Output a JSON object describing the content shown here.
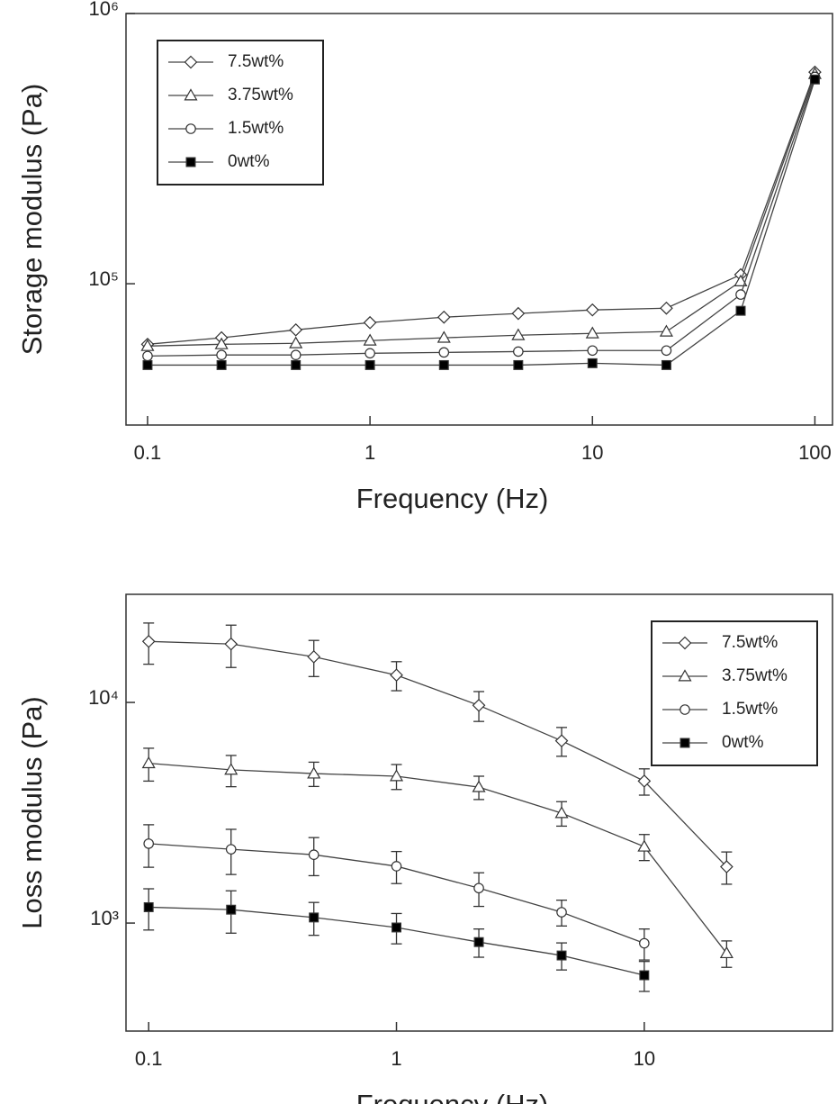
{
  "chart_data": [
    {
      "type": "line",
      "xlabel": "Frequency (Hz)",
      "ylabel": "Storage modulus (Pa)",
      "xscale": "log",
      "yscale": "log",
      "x": [
        0.1,
        0.215,
        0.464,
        1,
        2.15,
        4.64,
        10,
        21.5,
        46.4,
        100
      ],
      "xlim": [
        0.08,
        120
      ],
      "xticks": [
        0.1,
        1,
        10,
        100
      ],
      "ylim": [
        30000,
        1000000
      ],
      "yticks": [
        {
          "value": 100000,
          "label": "10⁵"
        },
        {
          "value": 1000000,
          "label": "10⁶"
        }
      ],
      "legend": "upper left",
      "series": [
        {
          "name": "7.5wt%",
          "color": "#444",
          "marker": "diamond",
          "marker_fill": "#fff",
          "values": [
            59700,
            63100,
            67500,
            71800,
            75200,
            77600,
            80000,
            81200,
            108000,
            607000
          ]
        },
        {
          "name": "3.75wt%",
          "color": "#444",
          "marker": "triangle",
          "marker_fill": "#fff",
          "values": [
            58800,
            59700,
            60200,
            61600,
            63100,
            64500,
            65500,
            66500,
            102000,
            597000
          ]
        },
        {
          "name": "1.5wt%",
          "color": "#444",
          "marker": "circle",
          "marker_fill": "#fff",
          "values": [
            54000,
            54500,
            54500,
            55300,
            55700,
            56100,
            56600,
            56600,
            91200,
            583000
          ]
        },
        {
          "name": "0wt%",
          "color": "#444",
          "marker": "square",
          "marker_fill": "#000",
          "values": [
            50000,
            50000,
            50000,
            50000,
            50000,
            50000,
            50800,
            50000,
            79400,
            570000
          ]
        }
      ]
    },
    {
      "type": "line",
      "xlabel": "Frequency (Hz)",
      "ylabel": "Loss modulus (Pa)",
      "xscale": "log",
      "yscale": "log",
      "x": [
        0.1,
        0.215,
        0.464,
        1,
        2.15,
        4.64,
        10,
        21.5
      ],
      "xlim": [
        0.081,
        57.5
      ],
      "xticks": [
        0.1,
        1,
        10
      ],
      "ylim": [
        324,
        30900
      ],
      "yticks": [
        {
          "value": 1000,
          "label": "10³"
        },
        {
          "value": 10000,
          "label": "10⁴"
        }
      ],
      "legend": "upper right",
      "series": [
        {
          "name": "7.5wt%",
          "color": "#444",
          "marker": "diamond",
          "marker_fill": "#fff",
          "values": [
            18900,
            18400,
            16100,
            13300,
            9700,
            6700,
            4400,
            1800
          ],
          "errors": [
            4000,
            4000,
            3000,
            2000,
            1500,
            1000,
            600,
            300
          ]
        },
        {
          "name": "3.75wt%",
          "color": "#444",
          "marker": "triangle",
          "marker_fill": "#fff",
          "values": [
            5300,
            4950,
            4760,
            4630,
            4130,
            3150,
            2220,
            730
          ],
          "errors": [
            900,
            800,
            600,
            600,
            500,
            400,
            300,
            100
          ]
        },
        {
          "name": "1.5wt%",
          "color": "#444",
          "marker": "circle",
          "marker_fill": "#fff",
          "values": [
            2290,
            2160,
            2040,
            1810,
            1440,
            1120,
            810,
            null
          ],
          "errors": [
            500,
            500,
            400,
            300,
            250,
            150,
            130,
            null
          ]
        },
        {
          "name": "0wt%",
          "color": "#444",
          "marker": "square",
          "marker_fill": "#000",
          "values": [
            1180,
            1150,
            1060,
            955,
            820,
            713,
            580,
            null
          ],
          "errors": [
            250,
            250,
            180,
            150,
            120,
            100,
            90,
            null
          ]
        }
      ]
    }
  ]
}
